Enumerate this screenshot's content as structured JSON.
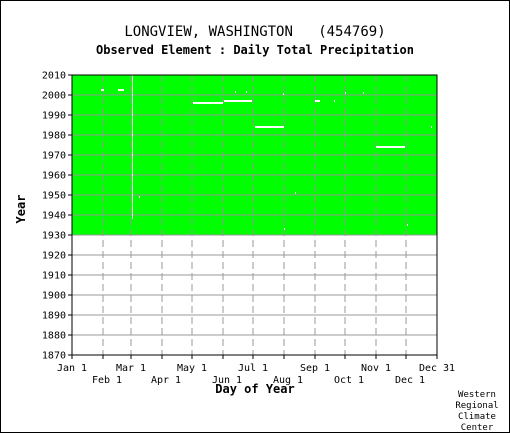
{
  "chart_data": {
    "type": "heatmap",
    "title": "LONGVIEW, WASHINGTON   (454769)",
    "subtitle": "Observed Element : Daily Total Precipitation",
    "xlabel": "Day of Year",
    "ylabel": "Year",
    "xlim": [
      1,
      366
    ],
    "ylim": [
      1870,
      2010
    ],
    "grid": true,
    "y_ticks": [
      1870,
      1880,
      1890,
      1900,
      1910,
      1920,
      1930,
      1940,
      1950,
      1960,
      1970,
      1980,
      1990,
      2000,
      2010
    ],
    "x_ticks_top": [
      {
        "label": "Jan 1",
        "day": 1
      },
      {
        "label": "Mar 1",
        "day": 60
      },
      {
        "label": "May 1",
        "day": 121
      },
      {
        "label": "Jul 1",
        "day": 182
      },
      {
        "label": "Sep 1",
        "day": 244
      },
      {
        "label": "Nov 1",
        "day": 305
      },
      {
        "label": "Dec 31",
        "day": 366
      }
    ],
    "x_ticks_bottom": [
      {
        "label": "Feb 1",
        "day": 32
      },
      {
        "label": "Apr 1",
        "day": 91
      },
      {
        "label": "Jun 1",
        "day": 152
      },
      {
        "label": "Aug 1",
        "day": 213
      },
      {
        "label": "Oct 1",
        "day": 274
      },
      {
        "label": "Dec 1",
        "day": 335
      }
    ],
    "data_color": "#00ff00",
    "missing_color": "#ffffff",
    "data_period": {
      "start_year": 1930,
      "end_year": 2010,
      "start_day": 1,
      "end_day": 366
    },
    "missing_segments": [
      {
        "year": 2002.5,
        "day_start": 30,
        "day_end": 33
      },
      {
        "year": 2002.5,
        "day_start": 47,
        "day_end": 53
      },
      {
        "year": 1996,
        "day_start": 122,
        "day_end": 152
      },
      {
        "year": 1997,
        "day_start": 153,
        "day_end": 181
      },
      {
        "year": 1984,
        "day_start": 184,
        "day_end": 213
      },
      {
        "year": 1974,
        "day_start": 305,
        "day_end": 334
      },
      {
        "year": 2001.5,
        "day_start": 164,
        "day_end": 165
      },
      {
        "year": 2001.5,
        "day_start": 175,
        "day_end": 176
      },
      {
        "year": 2000.5,
        "day_start": 212,
        "day_end": 213
      },
      {
        "year": 1997,
        "day_start": 244,
        "day_end": 249
      },
      {
        "year": 1997,
        "day_start": 263,
        "day_end": 264
      },
      {
        "year": 2001,
        "day_start": 274,
        "day_end": 275
      },
      {
        "year": 2001,
        "day_start": 292,
        "day_end": 293
      },
      {
        "year": 1984,
        "day_start": 360,
        "day_end": 361
      },
      {
        "year": 1949,
        "day_start": 68,
        "day_end": 69
      },
      {
        "year": 1935,
        "day_start": 336,
        "day_end": 337
      },
      {
        "year": 1933,
        "day_start": 213,
        "day_end": 214
      },
      {
        "year": 1951,
        "day_start": 224,
        "day_end": 225
      }
    ],
    "missing_vertical": [
      {
        "day": 61,
        "year_start": 1938,
        "year_end": 2010
      }
    ]
  },
  "credit": [
    "Western",
    "Regional",
    "Climate",
    "Center"
  ]
}
